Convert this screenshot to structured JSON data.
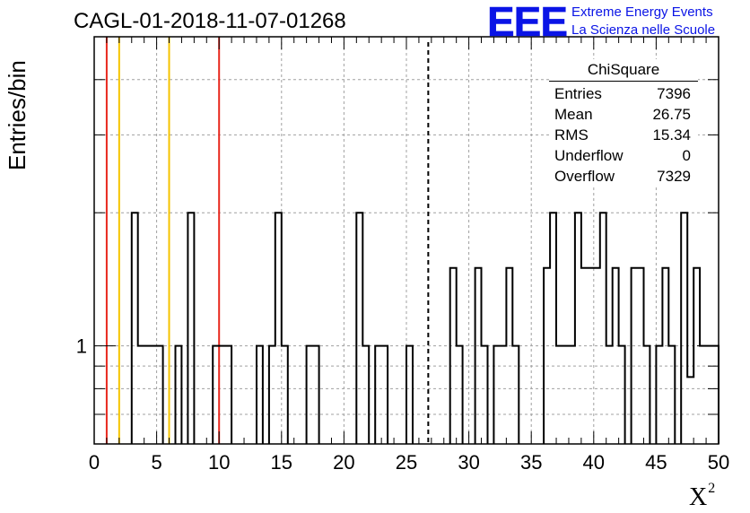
{
  "header": {
    "title": "CAGL-01-2018-11-07-01268",
    "logo": "EEE",
    "logo_line1": "Extreme Energy Events",
    "logo_line2": "La Scienza nelle Scuole"
  },
  "stats_box": {
    "title": "ChiSquare",
    "rows": [
      {
        "label": "Entries",
        "value": "7396"
      },
      {
        "label": "Mean",
        "value": "26.75"
      },
      {
        "label": "RMS",
        "value": "15.34"
      },
      {
        "label": "Underflow",
        "value": "0"
      },
      {
        "label": "Overflow",
        "value": "7329"
      }
    ]
  },
  "colors": {
    "red_line": "#e8281e",
    "yellow_line": "#f5c400",
    "grid": "#a0a0a0",
    "logo": "#0a14e6"
  },
  "chart_data": {
    "type": "histogram",
    "xlabel": "X",
    "xlabel_sup": "2",
    "ylabel": "Entries/bin",
    "xlim": [
      0,
      50
    ],
    "ylim": [
      0.6,
      5.0
    ],
    "yscale": "log",
    "x_ticks": [
      0,
      5,
      10,
      15,
      20,
      25,
      30,
      35,
      40,
      45,
      50
    ],
    "y_ticks": [
      {
        "value": 1,
        "label": "1"
      }
    ],
    "grid": true,
    "bin_width": 0.5,
    "bins": [
      {
        "x": 3.0,
        "count": 2
      },
      {
        "x": 3.5,
        "count": 1
      },
      {
        "x": 4.0,
        "count": 1
      },
      {
        "x": 4.5,
        "count": 1
      },
      {
        "x": 5.0,
        "count": 1
      },
      {
        "x": 6.5,
        "count": 1
      },
      {
        "x": 7.5,
        "count": 2
      },
      {
        "x": 9.5,
        "count": 1
      },
      {
        "x": 10.0,
        "count": 1
      },
      {
        "x": 10.5,
        "count": 1
      },
      {
        "x": 13.0,
        "count": 1
      },
      {
        "x": 14.0,
        "count": 1
      },
      {
        "x": 14.5,
        "count": 2
      },
      {
        "x": 15.0,
        "count": 1
      },
      {
        "x": 17.0,
        "count": 1
      },
      {
        "x": 17.5,
        "count": 1
      },
      {
        "x": 21.0,
        "count": 2
      },
      {
        "x": 21.5,
        "count": 1
      },
      {
        "x": 22.5,
        "count": 1
      },
      {
        "x": 23.0,
        "count": 1
      },
      {
        "x": 25.0,
        "count": 1
      },
      {
        "x": 28.5,
        "count": 1.5
      },
      {
        "x": 29.0,
        "count": 1
      },
      {
        "x": 30.5,
        "count": 1.5
      },
      {
        "x": 31.0,
        "count": 1
      },
      {
        "x": 32.0,
        "count": 1
      },
      {
        "x": 32.5,
        "count": 1
      },
      {
        "x": 33.0,
        "count": 1.5
      },
      {
        "x": 33.5,
        "count": 1
      },
      {
        "x": 36.0,
        "count": 1.5
      },
      {
        "x": 36.5,
        "count": 2
      },
      {
        "x": 37.0,
        "count": 1
      },
      {
        "x": 37.5,
        "count": 1
      },
      {
        "x": 38.0,
        "count": 1
      },
      {
        "x": 38.5,
        "count": 2
      },
      {
        "x": 39.0,
        "count": 1.5
      },
      {
        "x": 39.5,
        "count": 1.5
      },
      {
        "x": 40.0,
        "count": 1.5
      },
      {
        "x": 40.5,
        "count": 2
      },
      {
        "x": 41.0,
        "count": 1
      },
      {
        "x": 41.5,
        "count": 1.5
      },
      {
        "x": 42.0,
        "count": 1
      },
      {
        "x": 43.0,
        "count": 1.5
      },
      {
        "x": 43.5,
        "count": 1.5
      },
      {
        "x": 44.0,
        "count": 1
      },
      {
        "x": 45.0,
        "count": 1
      },
      {
        "x": 45.5,
        "count": 1.5
      },
      {
        "x": 46.0,
        "count": 1
      },
      {
        "x": 47.0,
        "count": 2
      },
      {
        "x": 47.5,
        "count": 0.85
      },
      {
        "x": 48.0,
        "count": 1.5
      },
      {
        "x": 48.5,
        "count": 1
      },
      {
        "x": 49.0,
        "count": 1
      },
      {
        "x": 49.5,
        "count": 1
      }
    ],
    "vertical_lines": [
      {
        "x": 1.0,
        "color": "#e8281e",
        "style": "solid"
      },
      {
        "x": 2.0,
        "color": "#f5c400",
        "style": "solid"
      },
      {
        "x": 6.0,
        "color": "#f5c400",
        "style": "solid"
      },
      {
        "x": 10.0,
        "color": "#e8281e",
        "style": "solid"
      },
      {
        "x": 26.75,
        "color": "#000000",
        "style": "dashed"
      }
    ]
  }
}
